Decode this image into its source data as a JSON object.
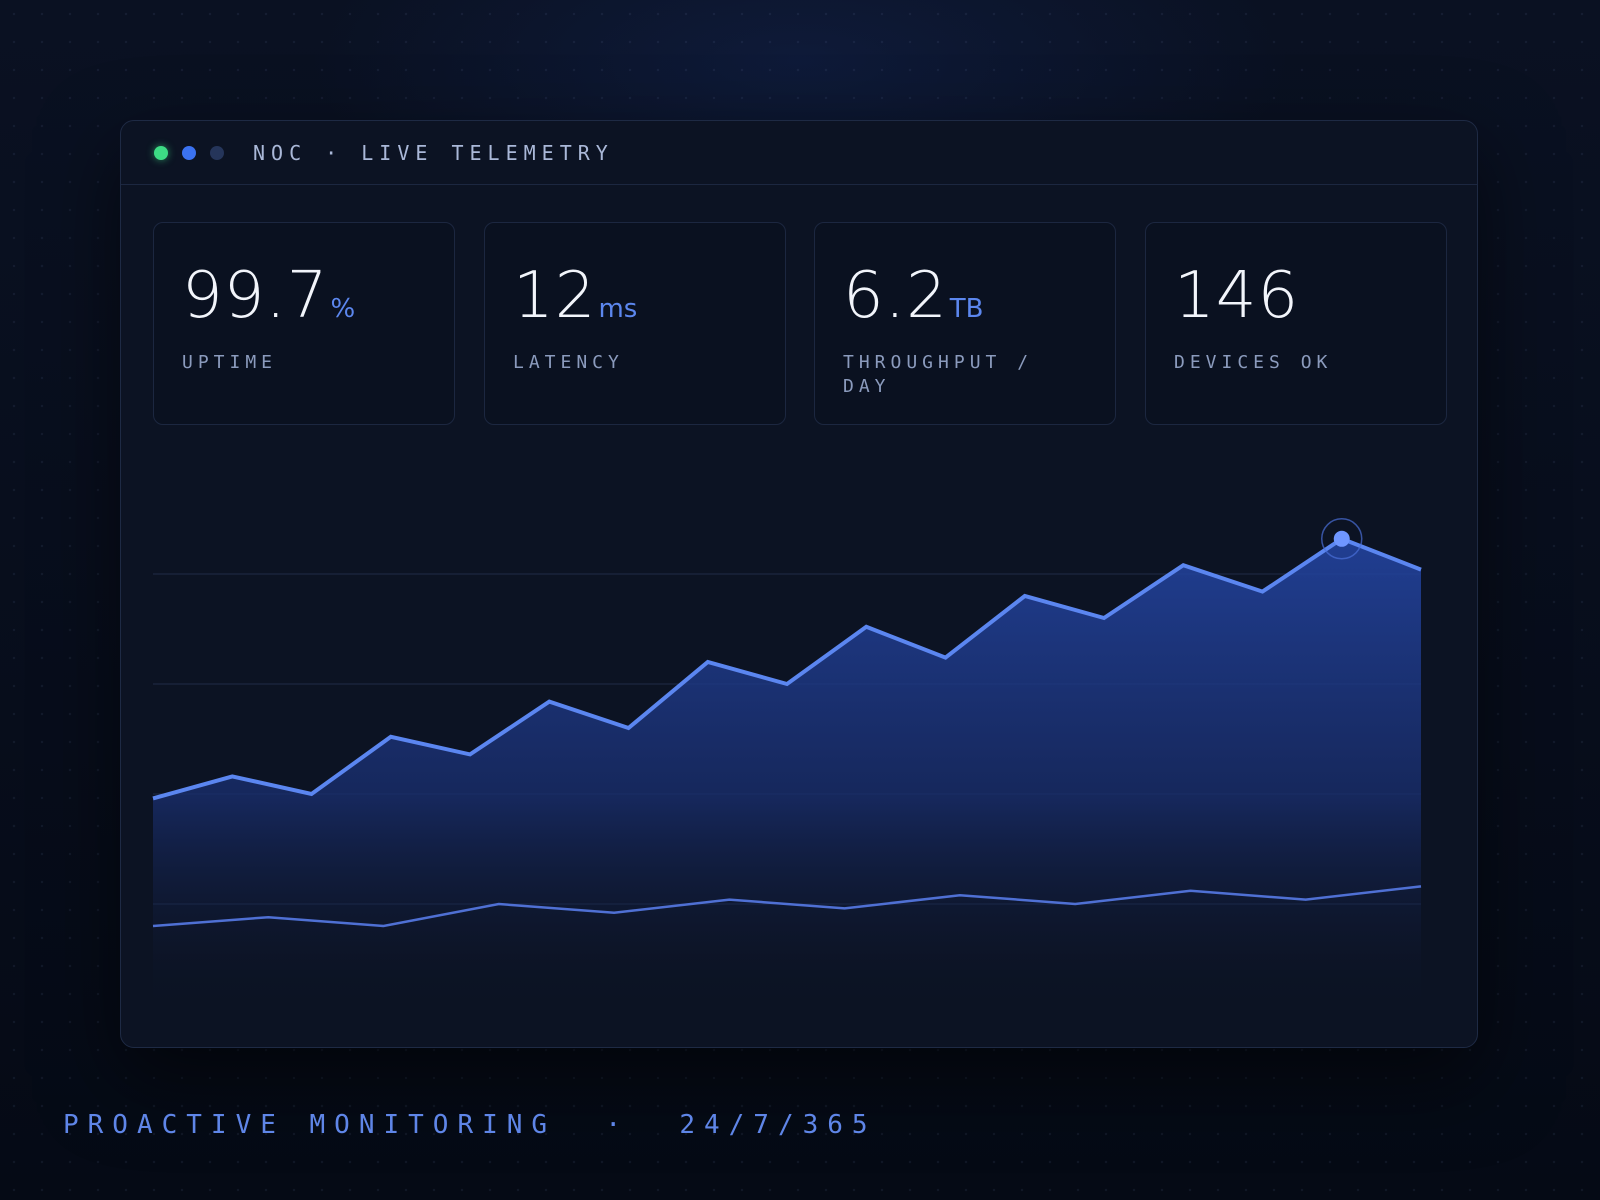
{
  "window": {
    "title": "NOC · LIVE TELEMETRY"
  },
  "stats": [
    {
      "value": "99.7",
      "unit": "%",
      "label": "UPTIME"
    },
    {
      "value": "12",
      "unit": "ms",
      "label": "LATENCY"
    },
    {
      "value": "6.2",
      "unit": "TB",
      "label": "THROUGHPUT / DAY"
    },
    {
      "value": "146",
      "unit": "",
      "label": "DEVICES OK"
    }
  ],
  "colors": {
    "accent": "#5c87ee",
    "status_green": "#3ddc84",
    "panel_bg": "#0c1323"
  },
  "chart_data": {
    "type": "area",
    "title": "",
    "xlabel": "",
    "ylabel": "",
    "grid": true,
    "ylim": [
      0,
      100
    ],
    "series": [
      {
        "values": [
          49,
          54,
          50,
          63,
          59,
          71,
          65,
          80,
          75,
          88,
          81,
          95,
          90,
          102,
          96,
          108,
          101
        ]
      },
      {
        "values": [
          20,
          22,
          20,
          25,
          23,
          26,
          24,
          27,
          25,
          28,
          26,
          29
        ]
      }
    ],
    "highlight": {
      "series": 0,
      "index": 15
    }
  },
  "footer": {
    "tagline": "PROACTIVE MONITORING  ·  24/7/365"
  }
}
